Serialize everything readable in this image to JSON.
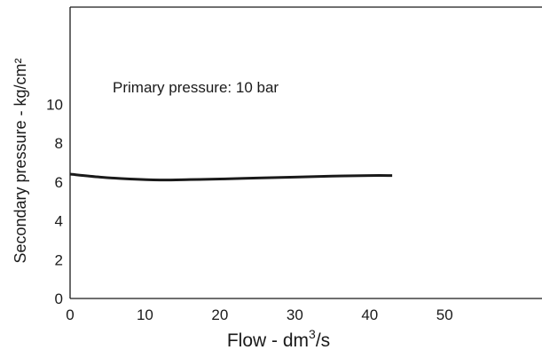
{
  "chart_data": {
    "type": "line",
    "xlabel": "Flow - dm",
    "xlabel_superscript": "3",
    "xlabel_suffix": "/s",
    "ylabel": "Secondary pressure - kg/cm²",
    "annotation": "Primary pressure: 10 bar",
    "xlim": [
      0,
      63
    ],
    "ylim": [
      0,
      15
    ],
    "x_ticks": [
      0,
      10,
      20,
      30,
      40,
      50
    ],
    "y_ticks": [
      0,
      2,
      4,
      6,
      8,
      10
    ],
    "series": [
      {
        "x": [
          0,
          4,
          8,
          12,
          16,
          20,
          25,
          30,
          35,
          40,
          43
        ],
        "y": [
          6.4,
          6.25,
          6.15,
          6.1,
          6.12,
          6.15,
          6.2,
          6.25,
          6.3,
          6.33,
          6.33
        ]
      }
    ],
    "grid": false,
    "line_color": "#1a1a1a"
  }
}
